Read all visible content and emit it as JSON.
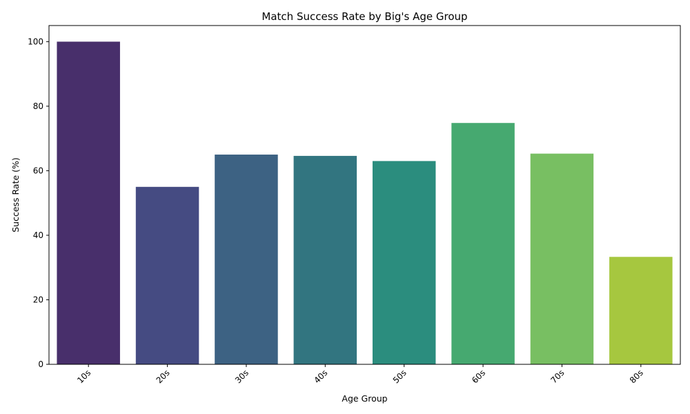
{
  "chart_data": {
    "type": "bar",
    "title": "Match Success Rate by Big's Age Group",
    "xlabel": "Age Group",
    "ylabel": "Success Rate (%)",
    "categories": [
      "10s",
      "20s",
      "30s",
      "40s",
      "50s",
      "60s",
      "70s",
      "80s"
    ],
    "values": [
      100,
      55,
      65,
      64.6,
      63,
      74.8,
      65.3,
      33.3
    ],
    "colors": [
      "#482f6b",
      "#454b82",
      "#3d6283",
      "#327580",
      "#2b8d7e",
      "#46a970",
      "#78bf62",
      "#a6c73f"
    ],
    "ylim": [
      0,
      105
    ],
    "yticks": [
      0,
      20,
      40,
      60,
      80,
      100
    ],
    "x_tick_rotation": 45,
    "grid": false,
    "legend": "none"
  }
}
